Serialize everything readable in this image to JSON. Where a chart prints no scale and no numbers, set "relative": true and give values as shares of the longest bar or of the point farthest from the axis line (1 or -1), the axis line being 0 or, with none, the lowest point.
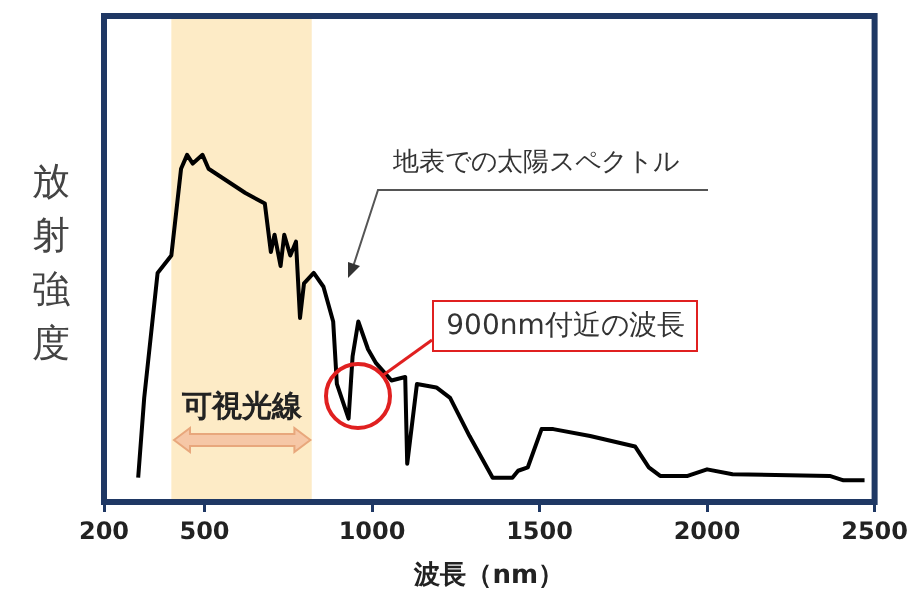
{
  "chart_data": {
    "type": "line",
    "relative": true,
    "xlabel": "波長（nm）",
    "ylabel": "放射強度",
    "xlim": [
      200,
      2500
    ],
    "xticks": [
      200,
      500,
      1000,
      1500,
      2000,
      2500
    ],
    "grid": false,
    "legend": false,
    "marker": "none",
    "series": [
      {
        "color": "#000000",
        "x": [
          302,
          320,
          360,
          401,
          430,
          448,
          465,
          494,
          512,
          622,
          680,
          698,
          709,
          727,
          738,
          756,
          773,
          785,
          797,
          826,
          855,
          884,
          895,
          930,
          942,
          959,
          988,
          1012,
          1058,
          1099,
          1105,
          1134,
          1192,
          1233,
          1291,
          1360,
          1419,
          1436,
          1465,
          1506,
          1541,
          1651,
          1785,
          1826,
          1860,
          1942,
          2000,
          2076,
          2366,
          2407,
          2470
        ],
        "values": [
          0.07,
          0.3,
          0.66,
          0.71,
          0.96,
          1,
          0.975,
          1,
          0.96,
          0.89,
          0.86,
          0.72,
          0.77,
          0.68,
          0.77,
          0.71,
          0.75,
          0.53,
          0.63,
          0.66,
          0.62,
          0.52,
          0.34,
          0.24,
          0.42,
          0.52,
          0.44,
          0.4,
          0.35,
          0.36,
          0.11,
          0.34,
          0.33,
          0.3,
          0.19,
          0.07,
          0.07,
          0.09,
          0.1,
          0.21,
          0.21,
          0.19,
          0.16,
          0.1,
          0.075,
          0.075,
          0.094,
          0.08,
          0.075,
          0.0625,
          0.0625
        ]
      }
    ],
    "bands": [
      {
        "axis": "x",
        "from": 401,
        "to": 820,
        "label": "可視光線",
        "color": "#fdebc6"
      }
    ],
    "annotations": [
      "地表での太陽スペクトル",
      "900nm付近の波長"
    ]
  }
}
